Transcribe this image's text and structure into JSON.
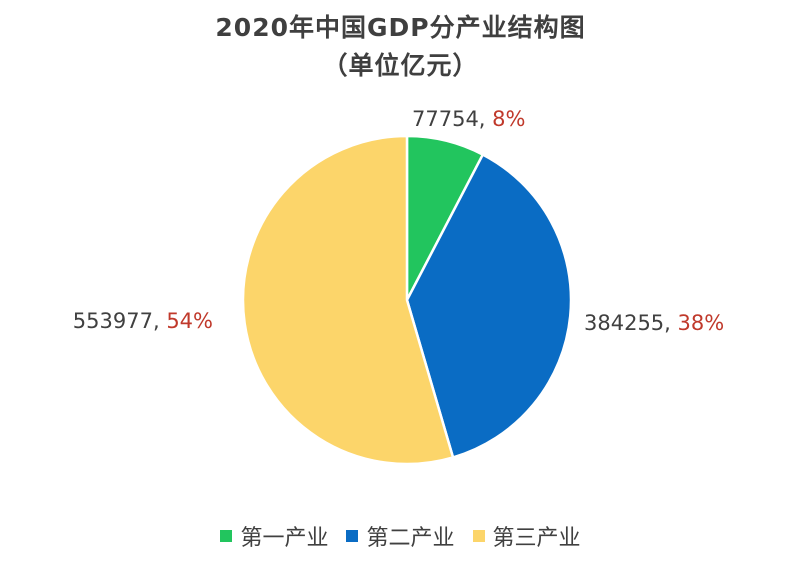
{
  "title_line1": "2020年中国GDP分产业结构图",
  "title_line2": "（单位亿元）",
  "chart_data": {
    "type": "pie",
    "title": "2020年中国GDP分产业结构图（单位亿元）",
    "categories": [
      "第一产业",
      "第二产业",
      "第三产业"
    ],
    "values": [
      77754,
      384255,
      553977
    ],
    "percent_labels": [
      "8%",
      "38%",
      "54%"
    ],
    "value_labels": [
      "77754, ",
      "384255, ",
      "553977, "
    ],
    "colors": [
      "#22c55e",
      "#0a6cc4",
      "#fcd56a"
    ],
    "start_angle": "12 o'clock, clockwise",
    "legend_position": "bottom"
  }
}
